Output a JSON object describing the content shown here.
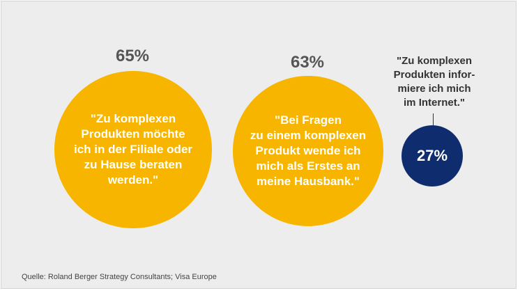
{
  "chart_data": {
    "type": "bubble",
    "items": [
      {
        "value": 65,
        "label": "65%",
        "quote": "\"Zu komplexen\nProdukten möchte\nich in der Filiale oder\nzu Hause beraten\nwerden.\"",
        "color": "#f7b500"
      },
      {
        "value": 63,
        "label": "63%",
        "quote": "\"Bei Fragen\nzu einem komplexen\nProdukt wende ich\nmich als Erstes an\nmeine Hausbank.\"",
        "color": "#f7b500"
      },
      {
        "value": 27,
        "label": "27%",
        "quote": "\"Zu komplexen\nProdukten infor-\nmiere ich mich\nim Internet.\"",
        "color": "#0f2d6e"
      }
    ]
  },
  "source": "Quelle: Roland Berger Strategy Consultants; Visa Europe"
}
